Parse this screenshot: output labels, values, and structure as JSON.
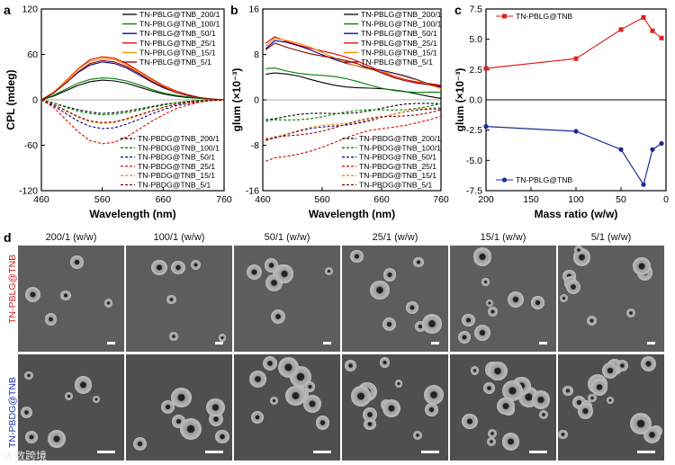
{
  "panel_letters": {
    "a": "a",
    "b": "b",
    "c": "c",
    "d": "d"
  },
  "chart_data": [
    {
      "id": "a",
      "type": "line",
      "xlabel": "Wavelength (nm)",
      "ylabel": "CPL (mdeg)",
      "xlim": [
        460,
        760
      ],
      "ylim": [
        -120,
        120
      ],
      "xticks": [
        460,
        560,
        660,
        760
      ],
      "yticks": [
        -120,
        -60,
        0,
        60,
        120
      ],
      "x": [
        460,
        480,
        500,
        520,
        540,
        560,
        580,
        600,
        620,
        640,
        660,
        680,
        700,
        720,
        740,
        760
      ],
      "series": [
        {
          "name": "TN-PBLG@TNB_200/1",
          "color": "#000000",
          "dash": false,
          "values": [
            0,
            5,
            12,
            19,
            24,
            26,
            25,
            22,
            17,
            12,
            8,
            5,
            3,
            2,
            1,
            0
          ]
        },
        {
          "name": "TN-PBLG@TNB_100/1",
          "color": "#008000",
          "dash": false,
          "values": [
            0,
            6,
            14,
            22,
            27,
            29,
            28,
            25,
            20,
            14,
            9,
            6,
            4,
            2,
            1,
            0
          ]
        },
        {
          "name": "TN-PBLG@TNB_50/1",
          "color": "#00008b",
          "dash": false,
          "values": [
            0,
            9,
            22,
            36,
            46,
            50,
            48,
            42,
            33,
            24,
            16,
            10,
            6,
            3,
            1,
            0
          ]
        },
        {
          "name": "TN-PBLG@TNB_25/1",
          "color": "#dd0000",
          "dash": false,
          "values": [
            0,
            10,
            25,
            41,
            53,
            57,
            55,
            48,
            38,
            28,
            19,
            12,
            7,
            3,
            1,
            0
          ]
        },
        {
          "name": "TN-PBLG@TNB_15/1",
          "color": "#ff8c00",
          "dash": false,
          "values": [
            0,
            10,
            24,
            40,
            51,
            55,
            53,
            46,
            37,
            27,
            18,
            11,
            6,
            3,
            1,
            0
          ]
        },
        {
          "name": "TN-PBLG@TNB_5/1",
          "color": "#8b0000",
          "dash": false,
          "values": [
            0,
            9,
            22,
            37,
            48,
            52,
            50,
            44,
            35,
            25,
            17,
            10,
            6,
            3,
            1,
            0
          ]
        },
        {
          "name": "TN-PBDG@TNB_200/1",
          "color": "#000000",
          "dash": true,
          "values": [
            0,
            -4,
            -9,
            -13,
            -16,
            -18,
            -17,
            -15,
            -12,
            -9,
            -6,
            -4,
            -2,
            -1,
            -1,
            0
          ]
        },
        {
          "name": "TN-PBDG@TNB_100/1",
          "color": "#008000",
          "dash": true,
          "values": [
            0,
            -4,
            -10,
            -15,
            -18,
            -20,
            -19,
            -17,
            -14,
            -10,
            -7,
            -4,
            -2,
            -1,
            -1,
            0
          ]
        },
        {
          "name": "TN-PBDG@TNB_50/1",
          "color": "#00008b",
          "dash": true,
          "values": [
            0,
            -8,
            -18,
            -28,
            -35,
            -38,
            -37,
            -32,
            -26,
            -19,
            -13,
            -8,
            -5,
            -2,
            -1,
            0
          ]
        },
        {
          "name": "TN-PBDG@TNB_25/1",
          "color": "#dd0000",
          "dash": true,
          "values": [
            0,
            -10,
            -26,
            -42,
            -54,
            -58,
            -56,
            -49,
            -39,
            -29,
            -20,
            -12,
            -7,
            -3,
            -1,
            0
          ]
        },
        {
          "name": "TN-PBDG@TNB_15/1",
          "color": "#ff8c00",
          "dash": true,
          "values": [
            0,
            -6,
            -15,
            -23,
            -29,
            -31,
            -30,
            -26,
            -21,
            -15,
            -10,
            -6,
            -4,
            -2,
            -1,
            0
          ]
        },
        {
          "name": "TN-PBDG@TNB_5/1",
          "color": "#8b0000",
          "dash": true,
          "values": [
            0,
            -6,
            -14,
            -22,
            -28,
            -30,
            -29,
            -25,
            -20,
            -15,
            -10,
            -6,
            -3,
            -2,
            -1,
            0
          ]
        }
      ]
    },
    {
      "id": "b",
      "type": "line",
      "xlabel": "Wavelength (nm)",
      "ylabel": "glum (×10⁻³)",
      "xlim": [
        460,
        760
      ],
      "ylim": [
        -16,
        16
      ],
      "xticks": [
        460,
        560,
        660,
        760
      ],
      "yticks": [
        -16,
        -8,
        0,
        8,
        16
      ],
      "x": [
        465,
        480,
        500,
        520,
        540,
        560,
        580,
        600,
        620,
        640,
        660,
        680,
        700,
        720,
        740,
        760
      ],
      "series": [
        {
          "name": "TN-PBLG@TNB_200/1",
          "color": "#000000",
          "dash": false,
          "values": [
            4.5,
            4.5,
            4.2,
            3.9,
            3.5,
            3.2,
            2.9,
            2.6,
            2.3,
            2.0,
            1.7,
            1.4,
            1.2,
            1.0,
            0.8,
            0.6
          ]
        },
        {
          "name": "TN-PBLG@TNB_100/1",
          "color": "#008000",
          "dash": false,
          "values": [
            5.5,
            5.8,
            5.4,
            5.0,
            4.6,
            4.2,
            3.8,
            3.4,
            3.0,
            2.6,
            2.3,
            2.0,
            1.7,
            1.4,
            1.2,
            1.0
          ]
        },
        {
          "name": "TN-PBLG@TNB_50/1",
          "color": "#00008b",
          "dash": false,
          "values": [
            9.0,
            10.3,
            9.8,
            9.2,
            8.6,
            8.0,
            7.4,
            6.8,
            6.2,
            5.6,
            5.0,
            4.4,
            3.9,
            3.4,
            2.9,
            2.5
          ]
        },
        {
          "name": "TN-PBLG@TNB_25/1",
          "color": "#dd0000",
          "dash": false,
          "values": [
            10.0,
            11.2,
            10.6,
            10.0,
            9.3,
            8.6,
            7.9,
            7.2,
            6.5,
            5.8,
            5.1,
            4.5,
            3.9,
            3.3,
            2.8,
            2.3
          ]
        },
        {
          "name": "TN-PBLG@TNB_15/1",
          "color": "#ff8c00",
          "dash": false,
          "values": [
            9.5,
            10.8,
            10.2,
            9.6,
            9.0,
            8.3,
            7.6,
            6.9,
            6.2,
            5.5,
            4.9,
            4.3,
            3.7,
            3.2,
            2.7,
            2.2
          ]
        },
        {
          "name": "TN-PBLG@TNB_5/1",
          "color": "#8b0000",
          "dash": false,
          "values": [
            8.8,
            10.0,
            9.5,
            9.0,
            8.4,
            7.8,
            7.2,
            6.6,
            6.0,
            5.4,
            4.8,
            4.2,
            3.7,
            3.2,
            2.7,
            2.2
          ]
        },
        {
          "name": "TN-PBDG@TNB_200/1",
          "color": "#000000",
          "dash": true,
          "values": [
            -3.5,
            -3.3,
            -3.1,
            -2.9,
            -2.7,
            -2.5,
            -2.3,
            -2.1,
            -1.9,
            -1.7,
            -1.5,
            -1.3,
            -1.1,
            -0.9,
            -0.7,
            -0.5
          ]
        },
        {
          "name": "TN-PBDG@TNB_100/1",
          "color": "#008000",
          "dash": true,
          "values": [
            -3.8,
            -3.6,
            -3.4,
            -3.2,
            -3.0,
            -2.8,
            -2.6,
            -2.4,
            -2.2,
            -2.0,
            -1.8,
            -1.6,
            -1.4,
            -1.2,
            -1.0,
            -0.8
          ]
        },
        {
          "name": "TN-PBDG@TNB_50/1",
          "color": "#00008b",
          "dash": true,
          "values": [
            -7.0,
            -6.6,
            -6.2,
            -5.8,
            -5.4,
            -5.0,
            -4.6,
            -4.2,
            -3.8,
            -3.4,
            -3.0,
            -2.7,
            -2.4,
            -2.1,
            -1.8,
            -1.5
          ]
        },
        {
          "name": "TN-PBDG@TNB_25/1",
          "color": "#dd0000",
          "dash": true,
          "values": [
            -10.8,
            -10.4,
            -9.9,
            -9.3,
            -8.7,
            -8.1,
            -7.5,
            -6.9,
            -6.3,
            -5.7,
            -5.2,
            -4.7,
            -4.2,
            -3.7,
            -3.3,
            -2.9
          ]
        },
        {
          "name": "TN-PBDG@TNB_15/1",
          "color": "#ff8c00",
          "dash": true,
          "values": [
            -6.8,
            -6.4,
            -6.0,
            -5.6,
            -5.2,
            -4.8,
            -4.4,
            -4.0,
            -3.6,
            -3.2,
            -2.9,
            -2.6,
            -2.3,
            -2.0,
            -1.7,
            -1.4
          ]
        },
        {
          "name": "TN-PBDG@TNB_5/1",
          "color": "#8b0000",
          "dash": true,
          "values": [
            -7.2,
            -6.8,
            -6.4,
            -6.0,
            -5.6,
            -5.2,
            -4.8,
            -4.4,
            -4.0,
            -3.6,
            -3.2,
            -2.9,
            -2.6,
            -2.3,
            -2.0,
            -1.7
          ]
        }
      ]
    },
    {
      "id": "c",
      "type": "line",
      "xlabel": "Mass ratio (w/w)",
      "ylabel": "glum (×10⁻³)",
      "xlim": [
        200,
        0
      ],
      "ylim": [
        -7.5,
        7.5
      ],
      "xticks": [
        200,
        150,
        100,
        50,
        0
      ],
      "yticks": [
        -7.5,
        -5.0,
        -2.5,
        0.0,
        2.5,
        5.0,
        7.5
      ],
      "ytick_labels": [
        "-7.5",
        "-5.0",
        "-2.5",
        "0.0",
        "2.5",
        "5.0",
        "7.5"
      ],
      "x": [
        200,
        100,
        50,
        25,
        15,
        5
      ],
      "series": [
        {
          "name": "TN-PBLG@TNB",
          "color": "#dd2222",
          "marker": "square",
          "values": [
            2.6,
            3.4,
            5.8,
            6.8,
            5.7,
            5.1
          ]
        },
        {
          "name": "TN-PBLG@TNB",
          "color": "#1a2a9a",
          "marker": "circle",
          "values": [
            -2.2,
            -2.6,
            -4.1,
            -7.0,
            -4.1,
            -3.6
          ]
        }
      ]
    }
  ],
  "sem": {
    "columns": [
      "200/1 (w/w)",
      "100/1 (w/w)",
      "50/1 (w/w)",
      "25/1 (w/w)",
      "15/1 (w/w)",
      "5/1 (w/w)"
    ],
    "rows": [
      {
        "label": "TN-PBLG@TNB",
        "color": "#cc2222"
      },
      {
        "label": "TN-PBDG@TNB",
        "color": "#2233aa"
      }
    ]
  },
  "watermark": "大数跨境"
}
